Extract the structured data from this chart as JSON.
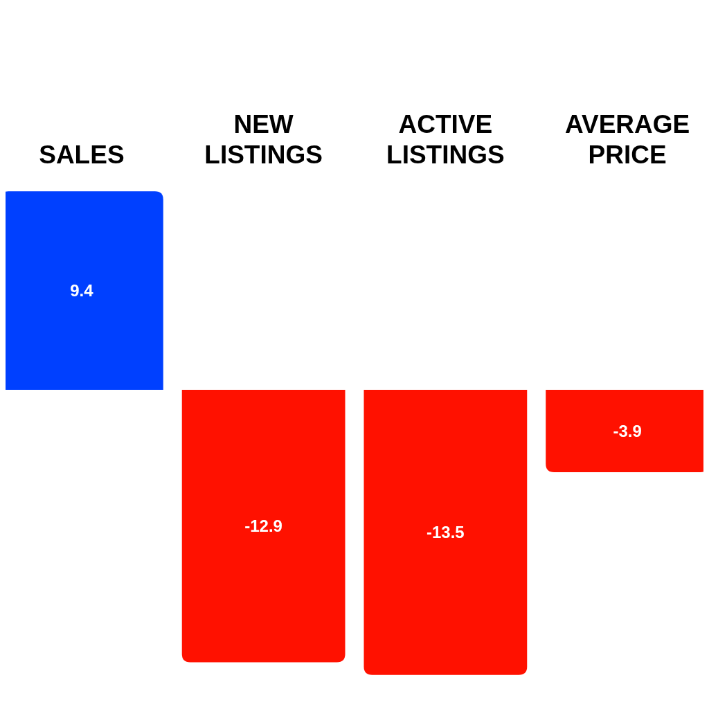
{
  "chart_data": {
    "type": "bar",
    "categories": [
      "SALES",
      "NEW LISTINGS",
      "ACTIVE LISTINGS",
      "AVERAGE PRICE"
    ],
    "values": [
      9.4,
      -12.9,
      -13.5,
      -3.9
    ],
    "colors": [
      "#0040ff",
      "#ff1100",
      "#ff1100",
      "#ff1100"
    ],
    "tick_labels": "x",
    "data_labels": true
  }
}
